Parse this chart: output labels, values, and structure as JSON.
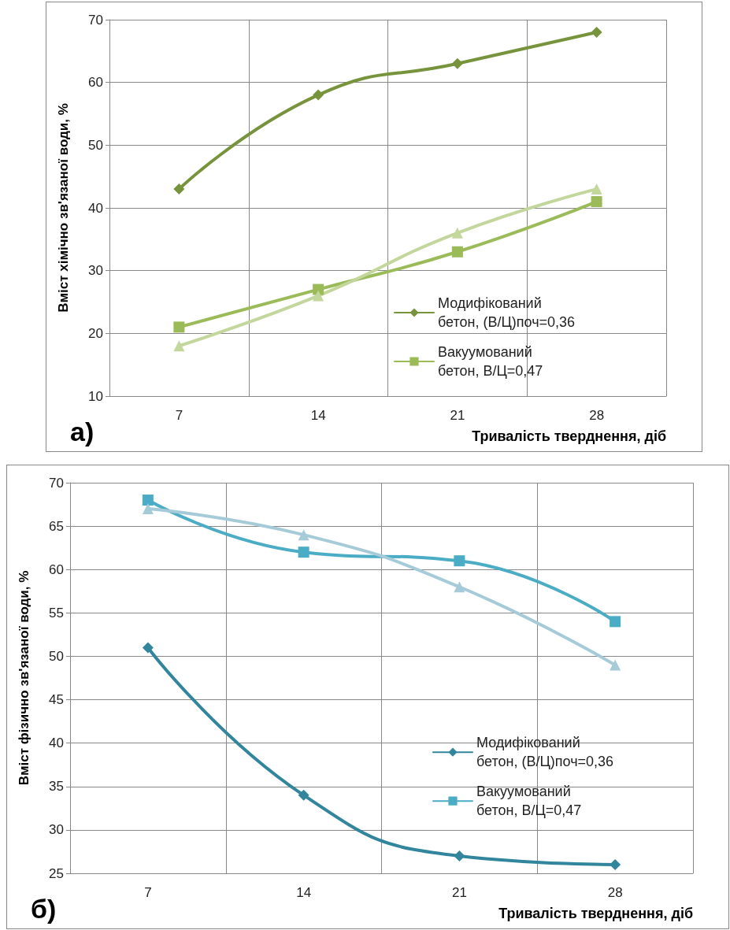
{
  "chart_data": [
    {
      "type": "line",
      "xlabel": "Тривалість тверднення, діб",
      "ylabel": "Вміст хімічно зв'язаної води, %",
      "categories": [
        "7",
        "14",
        "21",
        "28"
      ],
      "ylim": [
        10,
        70
      ],
      "yticks": [
        10,
        20,
        30,
        40,
        50,
        60,
        70
      ],
      "grid": true,
      "legend": "bottom right",
      "line_style": "solid",
      "annotations": [
        "а)"
      ],
      "series": [
        {
          "name": "Модифікований бетон, (В/Ц)поч=0,36",
          "color": "#77933c",
          "marker": "diamond",
          "values": [
            43,
            58,
            63,
            68
          ]
        },
        {
          "name": "Вакуумований бетон, В/Ц=0,47",
          "color": "#9bbb59",
          "marker": "square",
          "values": [
            21,
            27,
            33,
            41
          ]
        },
        {
          "color": "#c3d69b",
          "marker": "triangle",
          "values": [
            18,
            26,
            36,
            43
          ]
        }
      ]
    },
    {
      "type": "line",
      "xlabel": "Тривалість тверднення, діб",
      "ylabel": "Вміст фізично зв'язаної води, %",
      "categories": [
        "7",
        "14",
        "21",
        "28"
      ],
      "ylim": [
        25,
        70
      ],
      "yticks": [
        25,
        30,
        35,
        40,
        45,
        50,
        55,
        60,
        65,
        70
      ],
      "grid": true,
      "legend": "right",
      "line_style": "solid",
      "annotations": [
        "б)"
      ],
      "series": [
        {
          "name": "Модифікований бетон, (В/Ц)поч=0,36",
          "color": "#31859c",
          "marker": "diamond",
          "values": [
            51,
            34,
            27,
            26
          ]
        },
        {
          "name": "Вакуумований бетон, В/Ц=0,47",
          "color": "#4bacc6",
          "marker": "square",
          "values": [
            68,
            62,
            61,
            54
          ]
        },
        {
          "color": "#a5cbd8",
          "marker": "triangle",
          "values": [
            67,
            64,
            58,
            49
          ]
        }
      ]
    }
  ]
}
